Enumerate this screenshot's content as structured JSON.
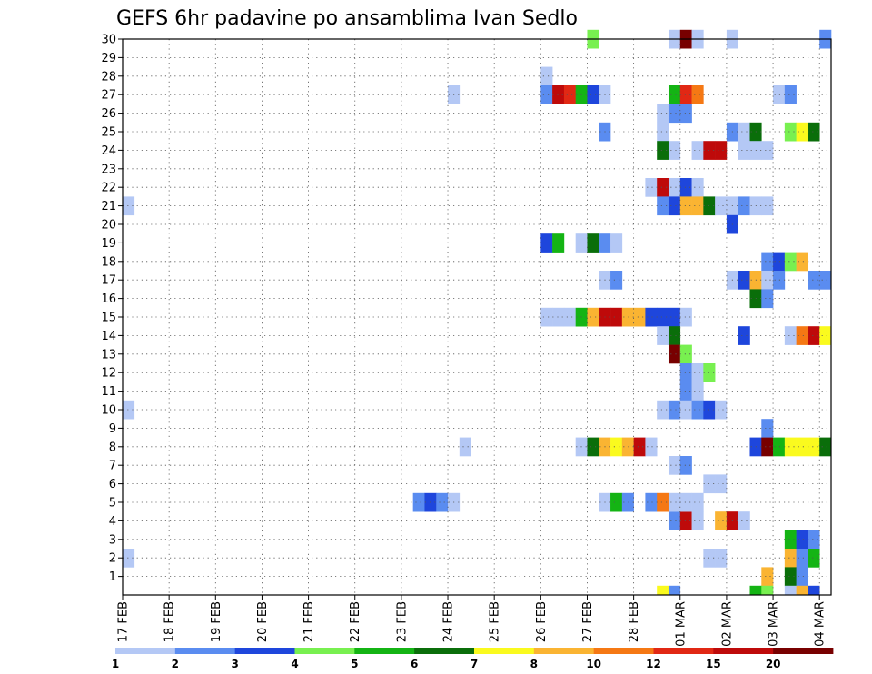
{
  "chart_data": {
    "type": "heatmap",
    "title": "GEFS 6hr padavine po ansamblima Ivan Sedlo",
    "x_tick_labels": [
      "17 FEB",
      "18 FEB",
      "19 FEB",
      "20 FEB",
      "21 FEB",
      "22 FEB",
      "23 FEB",
      "24 FEB",
      "25 FEB",
      "26 FEB",
      "27 FEB",
      "28 FEB",
      "01 MAR",
      "02 MAR",
      "03 MAR",
      "04 MAR"
    ],
    "x_range_days": [
      0,
      15.25
    ],
    "y_tick_labels": [
      "1",
      "2",
      "3",
      "4",
      "5",
      "6",
      "7",
      "8",
      "9",
      "10",
      "11",
      "12",
      "13",
      "14",
      "15",
      "16",
      "17",
      "18",
      "19",
      "20",
      "21",
      "22",
      "23",
      "24",
      "25",
      "26",
      "27",
      "28",
      "29",
      "30"
    ],
    "y_range": [
      0,
      30
    ],
    "grid": true,
    "legend_levels": [
      "1",
      "2",
      "3",
      "4",
      "5",
      "6",
      "7",
      "8",
      "10",
      "12",
      "15",
      "20"
    ],
    "palette": [
      "#b4c8f5",
      "#5a8cf0",
      "#1e46dc",
      "#78f050",
      "#14b414",
      "#0a6e0a",
      "#fafa1e",
      "#fab432",
      "#f57814",
      "#e12814",
      "#be0a0a",
      "#780000"
    ],
    "cells": [
      [
        30,
        10,
        4
      ],
      [
        30,
        11.75,
        1
      ],
      [
        30,
        12,
        12
      ],
      [
        30,
        12.25,
        13
      ],
      [
        30,
        13,
        1
      ],
      [
        30,
        15,
        2
      ],
      [
        28,
        9,
        1
      ],
      [
        27,
        7,
        1
      ],
      [
        27,
        9,
        2
      ],
      [
        27,
        9.25,
        11
      ],
      [
        27,
        9.5,
        10
      ],
      [
        27,
        9.75,
        5
      ],
      [
        27,
        10,
        3
      ],
      [
        27,
        10.25,
        1
      ],
      [
        27,
        11.75,
        5
      ],
      [
        27,
        12,
        10
      ],
      [
        27,
        12.25,
        9
      ],
      [
        27,
        14,
        1
      ],
      [
        27,
        14.25,
        2
      ],
      [
        26,
        11.5,
        1
      ],
      [
        26,
        11.75,
        2
      ],
      [
        26,
        12,
        2
      ],
      [
        25,
        10.25,
        2
      ],
      [
        25,
        11.5,
        1
      ],
      [
        25,
        13,
        2
      ],
      [
        25,
        13.25,
        13
      ],
      [
        25,
        13.5,
        6
      ],
      [
        25,
        14.25,
        4
      ],
      [
        25,
        14.5,
        7
      ],
      [
        25,
        14.75,
        6
      ],
      [
        24,
        11.5,
        6
      ],
      [
        24,
        11.75,
        1
      ],
      [
        24,
        12.25,
        1
      ],
      [
        24,
        12.5,
        11
      ],
      [
        24,
        12.75,
        11
      ],
      [
        24,
        13.25,
        1
      ],
      [
        24,
        13.5,
        1
      ],
      [
        24,
        13.75,
        1
      ],
      [
        22,
        11.25,
        1
      ],
      [
        22,
        11.5,
        11
      ],
      [
        22,
        11.75,
        13
      ],
      [
        22,
        12,
        3
      ],
      [
        22,
        12.25,
        1
      ],
      [
        21,
        0,
        1
      ],
      [
        21,
        11.5,
        2
      ],
      [
        21,
        11.75,
        3
      ],
      [
        21,
        12,
        8
      ],
      [
        21,
        12.25,
        8
      ],
      [
        21,
        12.5,
        6
      ],
      [
        21,
        12.75,
        1
      ],
      [
        21,
        13,
        1
      ],
      [
        21,
        13.25,
        2
      ],
      [
        21,
        13.5,
        1
      ],
      [
        21,
        13.75,
        1
      ],
      [
        20,
        13,
        3
      ],
      [
        19,
        9,
        3
      ],
      [
        19,
        9.25,
        5
      ],
      [
        19,
        9.75,
        1
      ],
      [
        19,
        10,
        6
      ],
      [
        19,
        10.25,
        2
      ],
      [
        19,
        10.5,
        1
      ],
      [
        18,
        13.75,
        2
      ],
      [
        18,
        14,
        3
      ],
      [
        18,
        14.25,
        4
      ],
      [
        18,
        14.5,
        8
      ],
      [
        17,
        10.25,
        1
      ],
      [
        17,
        10.5,
        2
      ],
      [
        17,
        13,
        1
      ],
      [
        17,
        13.25,
        3
      ],
      [
        17,
        13.5,
        8
      ],
      [
        17,
        13.75,
        1
      ],
      [
        17,
        14,
        2
      ],
      [
        17,
        14.75,
        2
      ],
      [
        17,
        15,
        2
      ],
      [
        16,
        13.5,
        6
      ],
      [
        16,
        13.75,
        2
      ],
      [
        15,
        9,
        1
      ],
      [
        15,
        9.25,
        1
      ],
      [
        15,
        9.5,
        1
      ],
      [
        15,
        9.75,
        5
      ],
      [
        15,
        10,
        8
      ],
      [
        15,
        10.25,
        11
      ],
      [
        15,
        10.5,
        11
      ],
      [
        15,
        10.75,
        8
      ],
      [
        15,
        11,
        8
      ],
      [
        15,
        11.25,
        3
      ],
      [
        15,
        11.5,
        3
      ],
      [
        15,
        11.75,
        3
      ],
      [
        15,
        12,
        1
      ],
      [
        14,
        11.5,
        1
      ],
      [
        14,
        11.75,
        6
      ],
      [
        14,
        13.25,
        3
      ],
      [
        14,
        14.25,
        1
      ],
      [
        14,
        14.5,
        9
      ],
      [
        14,
        14.75,
        11
      ],
      [
        14,
        15,
        7
      ],
      [
        13,
        11.75,
        12
      ],
      [
        13,
        12,
        4
      ],
      [
        12,
        12,
        2
      ],
      [
        12,
        12.25,
        1
      ],
      [
        12,
        12.5,
        4
      ],
      [
        11,
        12,
        2
      ],
      [
        11,
        12.25,
        1
      ],
      [
        10,
        0,
        1
      ],
      [
        10,
        11.5,
        1
      ],
      [
        10,
        11.75,
        2
      ],
      [
        10,
        12,
        1
      ],
      [
        10,
        12.25,
        2
      ],
      [
        10,
        12.5,
        3
      ],
      [
        10,
        12.75,
        1
      ],
      [
        9,
        13.75,
        2
      ],
      [
        8,
        7.25,
        1
      ],
      [
        8,
        9.75,
        1
      ],
      [
        8,
        10,
        6
      ],
      [
        8,
        10.25,
        8
      ],
      [
        8,
        10.5,
        7
      ],
      [
        8,
        10.75,
        8
      ],
      [
        8,
        11,
        11
      ],
      [
        8,
        11.25,
        1
      ],
      [
        8,
        13.5,
        3
      ],
      [
        8,
        13.75,
        12
      ],
      [
        8,
        14,
        5
      ],
      [
        8,
        14.25,
        7
      ],
      [
        8,
        14.5,
        7
      ],
      [
        8,
        14.75,
        7
      ],
      [
        8,
        15,
        6
      ],
      [
        7,
        11.75,
        1
      ],
      [
        7,
        12,
        2
      ],
      [
        6,
        12.5,
        1
      ],
      [
        6,
        12.75,
        1
      ],
      [
        5,
        6.25,
        2
      ],
      [
        6,
        6.25,
        0
      ],
      [
        4,
        11.75,
        2
      ],
      [
        4,
        12,
        11
      ],
      [
        4,
        12.25,
        1
      ],
      [
        4,
        12.75,
        8
      ],
      [
        4,
        13,
        11
      ],
      [
        4,
        13.25,
        1
      ],
      [
        3,
        14.25,
        5
      ],
      [
        3,
        14.5,
        3
      ],
      [
        3,
        14.75,
        2
      ],
      [
        2,
        0,
        1
      ],
      [
        2,
        12.5,
        1
      ],
      [
        2,
        12.75,
        1
      ],
      [
        2,
        14.25,
        8
      ],
      [
        2,
        14.5,
        2
      ],
      [
        2,
        14.75,
        5
      ],
      [
        1,
        13.75,
        8
      ],
      [
        1,
        14.25,
        6
      ],
      [
        1,
        14.5,
        2
      ],
      [
        0,
        11.5,
        7
      ],
      [
        0,
        11.75,
        2
      ],
      [
        0,
        13.5,
        5
      ],
      [
        0,
        13.75,
        4
      ],
      [
        0,
        14.25,
        1
      ],
      [
        0,
        14.5,
        8
      ],
      [
        0,
        14.75,
        3
      ]
    ],
    "cells_row5": [
      [
        6.25,
        2
      ],
      [
        6.5,
        3
      ],
      [
        6.75,
        2
      ],
      [
        7,
        1
      ],
      [
        10.25,
        1
      ],
      [
        10.5,
        5
      ],
      [
        10.75,
        2
      ],
      [
        11.25,
        2
      ],
      [
        11.5,
        9
      ],
      [
        11.75,
        1
      ],
      [
        12,
        1
      ],
      [
        12.25,
        1
      ]
    ]
  }
}
